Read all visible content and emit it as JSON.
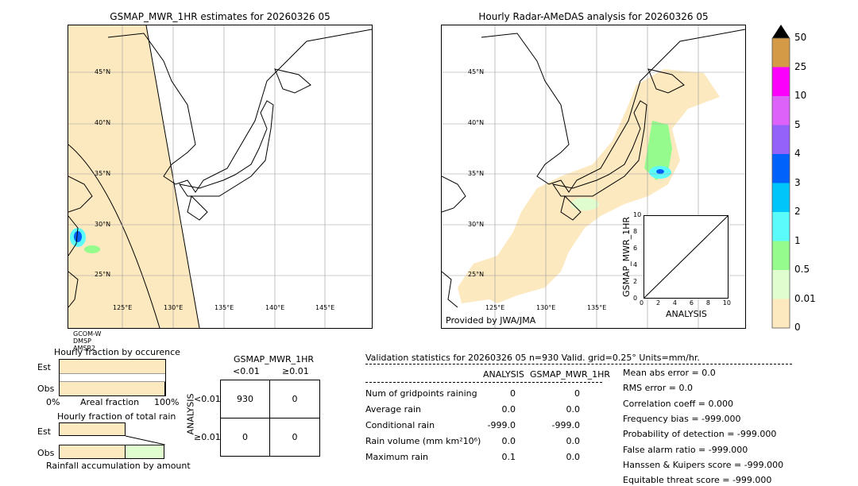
{
  "left_map": {
    "title": "GSMAP_MWR_1HR estimates for 20260326 05",
    "lat_labels": [
      "45°N",
      "40°N",
      "35°N",
      "30°N",
      "25°N"
    ],
    "lon_labels": [
      "125°E",
      "130°E",
      "135°E",
      "140°E",
      "145°E"
    ],
    "sensors": "GCOM-W\nDMSP\nAMSR2"
  },
  "right_map": {
    "title": "Hourly Radar-AMeDAS analysis for 20260326 05",
    "lat_labels": [
      "45°N",
      "40°N",
      "35°N",
      "30°N",
      "25°N"
    ],
    "lon_labels": [
      "125°E",
      "130°E",
      "135°E"
    ],
    "credit": "Provided by JWA/JMA"
  },
  "inset": {
    "ylabel": "GSMAP_MWR_1HR",
    "xlabel": "ANALYSIS",
    "ticks": [
      "0",
      "2",
      "4",
      "6",
      "8",
      "10"
    ]
  },
  "colorbar": {
    "labels": [
      "0",
      "0.01",
      "0.5",
      "1",
      "2",
      "3",
      "4",
      "5",
      "10",
      "25",
      "50"
    ],
    "colors": [
      "#fde9c0",
      "#e0fdd0",
      "#94fb8c",
      "#5bfbfb",
      "#00c5fb",
      "#0062fb",
      "#9562f9",
      "#dc62f9",
      "#fb00fb",
      "#d49a45"
    ],
    "extend_color": "#000000"
  },
  "fraction": {
    "title1": "Hourly fraction by occurence",
    "title2": "Hourly fraction of total rain",
    "est": "Est",
    "obs": "Obs",
    "x0": "0%",
    "x1": "100%",
    "xlabel1": "Areal fraction",
    "xlabel2": "Rainfall accumulation by amount",
    "occ_est": 1.0,
    "occ_obs": 0.99,
    "rain_est_beige": 0.63,
    "rain_obs_beige": 0.63,
    "rain_obs_green": 0.37
  },
  "contingency": {
    "title": "GSMAP_MWR_1HR",
    "col_lt": "<0.01",
    "col_ge": "≥0.01",
    "row_label": "ANALYSIS",
    "row_lt": "<0.01",
    "row_ge": "≥0.01",
    "cells": [
      "930",
      "0",
      "0",
      "0"
    ]
  },
  "stats": {
    "header": "Validation statistics for 20260326 05  n=930 Valid. grid=0.25° Units=mm/hr.",
    "col1": "ANALYSIS",
    "col2": "GSMAP_MWR_1HR",
    "rows": [
      {
        "label": "Num of gridpoints raining",
        "a": "0",
        "b": "0"
      },
      {
        "label": "Average rain",
        "a": "0.0",
        "b": "0.0"
      },
      {
        "label": "Conditional rain",
        "a": "-999.0",
        "b": "-999.0"
      },
      {
        "label": "Rain volume (mm km²10⁶)",
        "a": "0.0",
        "b": "0.0"
      },
      {
        "label": "Maximum rain",
        "a": "0.1",
        "b": "0.0"
      }
    ],
    "scores": [
      "Mean abs error =    0.0",
      "RMS error =    0.0",
      "Correlation coeff =  0.000",
      "Frequency bias = -999.000",
      "Probability of detection = -999.000",
      "False alarm ratio = -999.000",
      "Hanssen & Kuipers score = -999.000",
      "Equitable threat score = -999.000"
    ]
  }
}
